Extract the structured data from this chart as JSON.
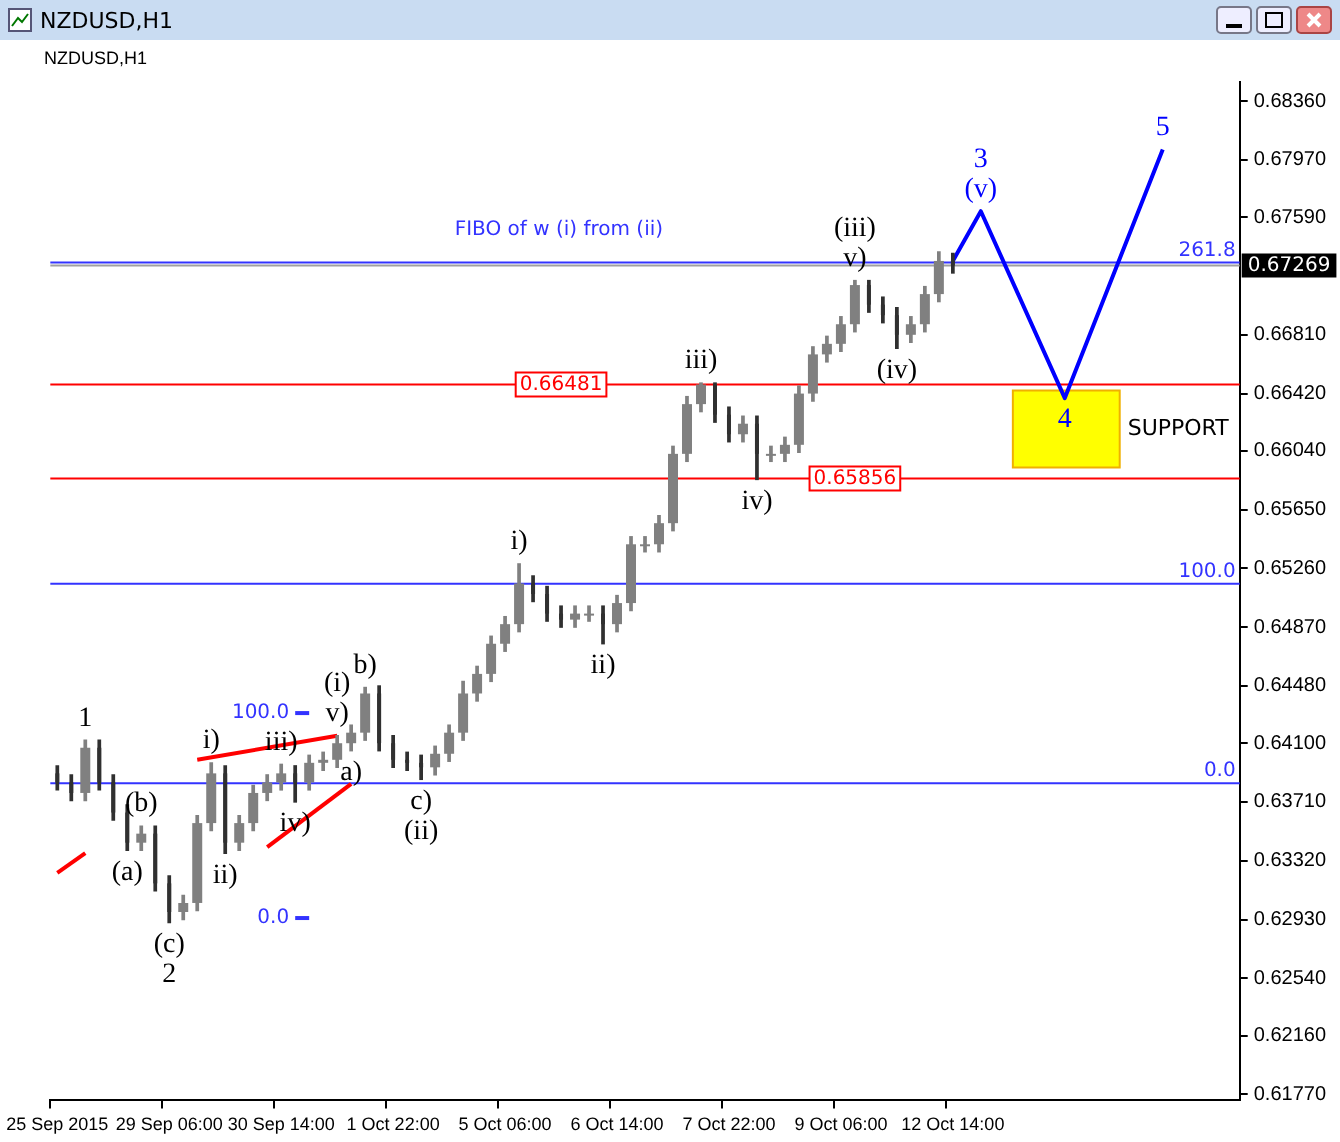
{
  "chart_data": {
    "type": "candlestick",
    "title": "NZDUSD,H1",
    "colors": [
      "#303030",
      "#303030",
      "#808080",
      "#303030",
      "#303030",
      "#303030",
      "#808080",
      "#303030",
      "#303030",
      "#808080",
      "#808080",
      "#808080",
      "#303030",
      "#808080",
      "#808080",
      "#808080",
      "#808080",
      "#303030",
      "#808080",
      "#808080",
      "#808080",
      "#808080",
      "#808080",
      "#303030",
      "#303030",
      "#303030",
      "#303030",
      "#808080",
      "#808080",
      "#808080",
      "#808080",
      "#808080",
      "#808080",
      "#808080",
      "#303030",
      "#303030",
      "#303030",
      "#808080",
      "#808080",
      "#303030",
      "#808080",
      "#808080",
      "#808080",
      "#808080",
      "#808080",
      "#808080",
      "#808080",
      "#303030",
      "#303030",
      "#808080",
      "#303030",
      "#808080",
      "#808080",
      "#808080",
      "#808080",
      "#808080",
      "#808080",
      "#808080",
      "#303030",
      "#303030",
      "#303030",
      "#808080",
      "#808080",
      "#808080",
      "#303030",
      null,
      null,
      null,
      null,
      null,
      null,
      null,
      null,
      null,
      null,
      null,
      null,
      null,
      null,
      null,
      null,
      null,
      null,
      null,
      null
    ],
    "categories": [
      "25 Sep 2015",
      null,
      null,
      null,
      null,
      null,
      null,
      null,
      "29 Sep 06:00",
      null,
      null,
      null,
      null,
      null,
      null,
      null,
      "30 Sep 14:00",
      null,
      null,
      null,
      null,
      null,
      null,
      null,
      "1 Oct 22:00",
      null,
      null,
      null,
      null,
      null,
      null,
      null,
      "5 Oct 06:00",
      null,
      null,
      null,
      null,
      null,
      null,
      null,
      "6 Oct 14:00",
      null,
      null,
      null,
      null,
      null,
      null,
      null,
      "7 Oct 22:00",
      null,
      null,
      null,
      null,
      null,
      null,
      null,
      "9 Oct 06:00",
      null,
      null,
      null,
      null,
      null,
      null,
      null,
      "12 Oct 14:00",
      null,
      null,
      null,
      null,
      null,
      null,
      null,
      null,
      null,
      null,
      null,
      null,
      null,
      null,
      null,
      null,
      null,
      null,
      null,
      null
    ],
    "ohlc": [
      [
        0.639,
        0.6395,
        0.6379,
        0.6384
      ],
      [
        0.6384,
        0.6389,
        0.6372,
        0.6377
      ],
      [
        0.6377,
        0.6412,
        0.6372,
        0.6407
      ],
      [
        0.6407,
        0.6412,
        0.6379,
        0.6384
      ],
      [
        0.6384,
        0.6389,
        0.6359,
        0.6364
      ],
      [
        0.6364,
        0.6369,
        0.6339,
        0.6344
      ],
      [
        0.6344,
        0.6355,
        0.6339,
        0.635
      ],
      [
        0.635,
        0.6355,
        0.6312,
        0.6317
      ],
      [
        0.6317,
        0.6322,
        0.6291,
        0.6298
      ],
      [
        0.6298,
        0.6309,
        0.6293,
        0.6304
      ],
      [
        0.6304,
        0.6362,
        0.6299,
        0.6357
      ],
      [
        0.6357,
        0.6397,
        0.6352,
        0.639
      ],
      [
        0.639,
        0.6395,
        0.6337,
        0.6344
      ],
      [
        0.6344,
        0.6362,
        0.6339,
        0.6357
      ],
      [
        0.6357,
        0.6382,
        0.6352,
        0.6377
      ],
      [
        0.6377,
        0.6389,
        0.6372,
        0.6384
      ],
      [
        0.6384,
        0.6396,
        0.6379,
        0.639
      ],
      [
        0.639,
        0.6395,
        0.6371,
        0.6384
      ],
      [
        0.6384,
        0.6402,
        0.6379,
        0.6397
      ],
      [
        0.6397,
        0.6404,
        0.6392,
        0.6399
      ],
      [
        0.6399,
        0.6415,
        0.6394,
        0.641
      ],
      [
        0.641,
        0.6422,
        0.6405,
        0.6417
      ],
      [
        0.6417,
        0.6447,
        0.6412,
        0.6443
      ],
      [
        0.6443,
        0.6448,
        0.6405,
        0.641
      ],
      [
        0.641,
        0.6415,
        0.6394,
        0.6399
      ],
      [
        0.6399,
        0.6404,
        0.6392,
        0.6397
      ],
      [
        0.6397,
        0.6402,
        0.6386,
        0.6394
      ],
      [
        0.6394,
        0.6408,
        0.6389,
        0.6403
      ],
      [
        0.6403,
        0.6422,
        0.6398,
        0.6417
      ],
      [
        0.6417,
        0.6451,
        0.6412,
        0.6443
      ],
      [
        0.6443,
        0.6461,
        0.6438,
        0.6456
      ],
      [
        0.6456,
        0.6481,
        0.6451,
        0.6476
      ],
      [
        0.6476,
        0.6494,
        0.6471,
        0.6489
      ],
      [
        0.6489,
        0.6529,
        0.6484,
        0.6516
      ],
      [
        0.6516,
        0.6521,
        0.6504,
        0.6509
      ],
      [
        0.6509,
        0.6514,
        0.6491,
        0.6496
      ],
      [
        0.6496,
        0.6501,
        0.6487,
        0.6492
      ],
      [
        0.6492,
        0.6501,
        0.6487,
        0.6496
      ],
      [
        0.6496,
        0.6501,
        0.6491,
        0.6496
      ],
      [
        0.6496,
        0.6501,
        0.6476,
        0.6489
      ],
      [
        0.6489,
        0.6508,
        0.6484,
        0.6503
      ],
      [
        0.6503,
        0.6547,
        0.6498,
        0.6542
      ],
      [
        0.6542,
        0.6547,
        0.6537,
        0.6542
      ],
      [
        0.6542,
        0.6561,
        0.6537,
        0.6556
      ],
      [
        0.6556,
        0.6607,
        0.6551,
        0.6602
      ],
      [
        0.6602,
        0.664,
        0.6597,
        0.6635
      ],
      [
        0.6635,
        0.6649,
        0.663,
        0.6648
      ],
      [
        0.6648,
        0.6649,
        0.6623,
        0.6628
      ],
      [
        0.6628,
        0.6633,
        0.661,
        0.6615
      ],
      [
        0.6615,
        0.6627,
        0.661,
        0.6622
      ],
      [
        0.6622,
        0.6627,
        0.6585,
        0.6602
      ],
      [
        0.6602,
        0.6607,
        0.6597,
        0.6602
      ],
      [
        0.6602,
        0.6613,
        0.6597,
        0.6608
      ],
      [
        0.6608,
        0.6647,
        0.6603,
        0.6642
      ],
      [
        0.6642,
        0.6673,
        0.6637,
        0.6668
      ],
      [
        0.6668,
        0.668,
        0.6663,
        0.6675
      ],
      [
        0.6675,
        0.6693,
        0.667,
        0.6688
      ],
      [
        0.6688,
        0.6717,
        0.6683,
        0.6714
      ],
      [
        0.6714,
        0.6717,
        0.6696,
        0.6701
      ],
      [
        0.6701,
        0.6706,
        0.6689,
        0.6694
      ],
      [
        0.6694,
        0.6699,
        0.6672,
        0.6681
      ],
      [
        0.6681,
        0.6693,
        0.6676,
        0.6688
      ],
      [
        0.6688,
        0.6713,
        0.6683,
        0.6708
      ],
      [
        0.6708,
        0.6736,
        0.6703,
        0.673
      ],
      [
        0.673,
        0.6735,
        0.6722,
        0.6727
      ],
      null,
      null,
      null,
      null,
      null,
      null,
      null,
      null,
      null,
      null,
      null,
      null,
      null,
      null,
      null,
      null,
      null,
      null,
      null,
      null
    ],
    "series": [
      {
        "type": "line",
        "color": "#0000ff",
        "values": [
          null,
          null,
          null,
          null,
          null,
          null,
          null,
          null,
          null,
          null,
          null,
          null,
          null,
          null,
          null,
          null,
          null,
          null,
          null,
          null,
          null,
          null,
          null,
          null,
          null,
          null,
          null,
          null,
          null,
          null,
          null,
          null,
          null,
          null,
          null,
          null,
          null,
          null,
          null,
          null,
          null,
          null,
          null,
          null,
          null,
          null,
          null,
          null,
          null,
          null,
          null,
          null,
          null,
          null,
          null,
          null,
          null,
          null,
          null,
          null,
          null,
          null,
          null,
          null,
          0.673,
          null,
          0.6763,
          null,
          null,
          null,
          null,
          null,
          0.6639,
          null,
          null,
          null,
          null,
          null,
          null,
          0.6804,
          null,
          null,
          null,
          null,
          null
        ]
      },
      {
        "type": "line",
        "color": "#ff0000",
        "values": [
          null,
          null,
          null,
          null,
          null,
          null,
          null,
          null,
          null,
          null,
          0.6399,
          null,
          null,
          null,
          null,
          null,
          null,
          null,
          null,
          null,
          0.6415,
          null,
          null,
          null,
          null,
          null,
          null,
          null,
          null,
          null,
          null,
          null,
          null,
          null,
          null,
          null,
          null,
          null,
          null,
          null,
          null,
          null,
          null,
          null,
          null,
          null,
          null,
          null,
          null,
          null,
          null,
          null,
          null,
          null,
          null,
          null,
          null,
          null,
          null,
          null,
          null,
          null,
          null,
          null,
          null,
          null,
          null,
          null,
          null,
          null,
          null,
          null,
          null,
          null,
          null,
          null,
          null,
          null,
          null,
          null,
          null,
          null,
          null,
          null,
          null
        ]
      },
      {
        "type": "line",
        "color": "#ff0000",
        "values": [
          null,
          null,
          null,
          null,
          null,
          null,
          null,
          null,
          null,
          null,
          null,
          null,
          null,
          null,
          null,
          0.6341,
          null,
          null,
          null,
          null,
          null,
          0.6383,
          null,
          null,
          null,
          null,
          null,
          null,
          null,
          null,
          null,
          null,
          null,
          null,
          null,
          null,
          null,
          null,
          null,
          null,
          null,
          null,
          null,
          null,
          null,
          null,
          null,
          null,
          null,
          null,
          null,
          null,
          null,
          null,
          null,
          null,
          null,
          null,
          null,
          null,
          null,
          null,
          null,
          null,
          null,
          null,
          null,
          null,
          null,
          null,
          null,
          null,
          null,
          null,
          null,
          null,
          null,
          null,
          null,
          null,
          null,
          null,
          null,
          null,
          null
        ]
      },
      {
        "type": "line",
        "color": "#ff0000",
        "values": [
          0.6324,
          null,
          0.6337,
          null,
          null,
          null,
          null,
          null,
          null,
          null,
          null,
          null,
          null,
          null,
          null,
          null,
          null,
          null,
          null,
          null,
          null,
          null,
          null,
          null,
          null,
          null,
          null,
          null,
          null,
          null,
          null,
          null,
          null,
          null,
          null,
          null,
          null,
          null,
          null,
          null,
          null,
          null,
          null,
          null,
          null,
          null,
          null,
          null,
          null,
          null,
          null,
          null,
          null,
          null,
          null,
          null,
          null,
          null,
          null,
          null,
          null,
          null,
          null,
          null,
          null,
          null,
          null,
          null,
          null,
          null,
          null,
          null,
          null,
          null,
          null,
          null,
          null,
          null,
          null,
          null,
          null,
          null,
          null,
          null,
          null
        ]
      },
      {
        "type": "line",
        "color": "#3333ff",
        "values": [
          null,
          null,
          null,
          null,
          null,
          null,
          null,
          null,
          null,
          null,
          null,
          null,
          null,
          null,
          null,
          null,
          null,
          0.643,
          0.643,
          null,
          null,
          null,
          null,
          null,
          null,
          null,
          null,
          null,
          null,
          null,
          null,
          null,
          null,
          null,
          null,
          null,
          null,
          null,
          null,
          null,
          null,
          null,
          null,
          null,
          null,
          null,
          null,
          null,
          null,
          null,
          null,
          null,
          null,
          null,
          null,
          null,
          null,
          null,
          null,
          null,
          null,
          null,
          null,
          null,
          null,
          null,
          null,
          null,
          null,
          null,
          null,
          null,
          null,
          null,
          null,
          null,
          null,
          null,
          null,
          null,
          null,
          null,
          null,
          null,
          null
        ]
      },
      {
        "type": "line",
        "color": "#3333ff",
        "values": [
          null,
          null,
          null,
          null,
          null,
          null,
          null,
          null,
          null,
          null,
          null,
          null,
          null,
          null,
          null,
          null,
          null,
          0.6294,
          0.6294,
          null,
          null,
          null,
          null,
          null,
          null,
          null,
          null,
          null,
          null,
          null,
          null,
          null,
          null,
          null,
          null,
          null,
          null,
          null,
          null,
          null,
          null,
          null,
          null,
          null,
          null,
          null,
          null,
          null,
          null,
          null,
          null,
          null,
          null,
          null,
          null,
          null,
          null,
          null,
          null,
          null,
          null,
          null,
          null,
          null,
          null,
          null,
          null,
          null,
          null,
          null,
          null,
          null,
          null,
          null,
          null,
          null,
          null,
          null,
          null,
          null,
          null,
          null,
          null,
          null,
          null
        ]
      }
    ],
    "ref_lines": [
      {
        "axis": "y",
        "value": 0.6729,
        "color": "#3333ff"
      },
      {
        "axis": "y",
        "value": 0.67269,
        "label": "0.67269",
        "color": "#a0a0a0"
      },
      {
        "axis": "y",
        "value": 0.66481,
        "label": "0.66481",
        "color": "#ff0000"
      },
      {
        "axis": "y",
        "value": 0.65856,
        "label": "0.65856",
        "color": "#ff0000"
      },
      {
        "axis": "y",
        "value": 0.65158,
        "color": "#3333ff"
      },
      {
        "axis": "y",
        "value": 0.63835,
        "color": "#3333ff"
      }
    ],
    "bands": [
      {
        "axis": "y",
        "from": 0.6593,
        "to": 0.6644,
        "label": "SUPPORT",
        "color": "#ffff00"
      }
    ],
    "annotations": [
      "FIBO of w (i) from (ii)",
      {
        "text": "261.8",
        "y": 0.6729
      },
      {
        "text": "100.0",
        "y": 0.65158
      },
      {
        "text": "0.0",
        "y": 0.63835
      },
      "100.0",
      "0.0",
      {
        "text": "1",
        "y": 0.6412
      },
      {
        "text": "(c)",
        "y": 0.6291
      },
      {
        "text": "2",
        "y": 0.6291
      },
      {
        "text": "(v)",
        "y": 0.6763
      },
      {
        "text": "3",
        "y": 0.6763
      },
      {
        "text": "4",
        "y": 0.6639
      },
      {
        "text": "5",
        "y": 0.6804
      },
      {
        "text": "(a)",
        "y": 0.6339
      },
      {
        "text": "(b)",
        "y": 0.6355
      },
      {
        "text": "v)",
        "y": 0.6415
      },
      {
        "text": "(i)",
        "y": 0.6415
      },
      {
        "text": "c)",
        "y": 0.6386
      },
      {
        "text": "(ii)",
        "y": 0.6386
      },
      {
        "text": "v)",
        "y": 0.6717
      },
      {
        "text": "(iii)",
        "y": 0.6717
      },
      {
        "text": "(iv)",
        "y": 0.6672
      },
      {
        "text": "i)",
        "y": 0.6397
      },
      {
        "text": "ii)",
        "y": 0.6337
      },
      {
        "text": "iii)",
        "y": 0.6396
      },
      {
        "text": "iv)",
        "y": 0.6371
      },
      {
        "text": "a)",
        "y": 0.6405
      },
      {
        "text": "b)",
        "y": 0.6447
      },
      {
        "text": "i)",
        "y": 0.6529
      },
      {
        "text": "ii)",
        "y": 0.6476
      },
      {
        "text": "iii)",
        "y": 0.6649
      },
      {
        "text": "iv)",
        "y": 0.6585
      }
    ],
    "ylim": [
      0.6173,
      0.6849
    ],
    "yticks": [
      {
        "value": 0.6177,
        "label": "0.61770"
      },
      {
        "value": 0.6216,
        "label": "0.62160"
      },
      {
        "value": 0.6254,
        "label": "0.62540"
      },
      {
        "value": 0.6293,
        "label": "0.62930"
      },
      {
        "value": 0.6332,
        "label": "0.63320"
      },
      {
        "value": 0.6371,
        "label": "0.63710"
      },
      {
        "value": 0.641,
        "label": "0.64100"
      },
      {
        "value": 0.6448,
        "label": "0.64480"
      },
      {
        "value": 0.6487,
        "label": "0.64870"
      },
      {
        "value": 0.6526,
        "label": "0.65260"
      },
      {
        "value": 0.6565,
        "label": "0.65650"
      },
      {
        "value": 0.6604,
        "label": "0.66040"
      },
      {
        "value": 0.6642,
        "label": "0.66420"
      },
      {
        "value": 0.6681,
        "label": "0.66810"
      },
      {
        "value": 0.6759,
        "label": "0.67590"
      },
      {
        "value": 0.6797,
        "label": "0.67970"
      },
      {
        "value": 0.6836,
        "label": "0.68360"
      }
    ],
    "grid": false,
    "legend": false
  }
}
